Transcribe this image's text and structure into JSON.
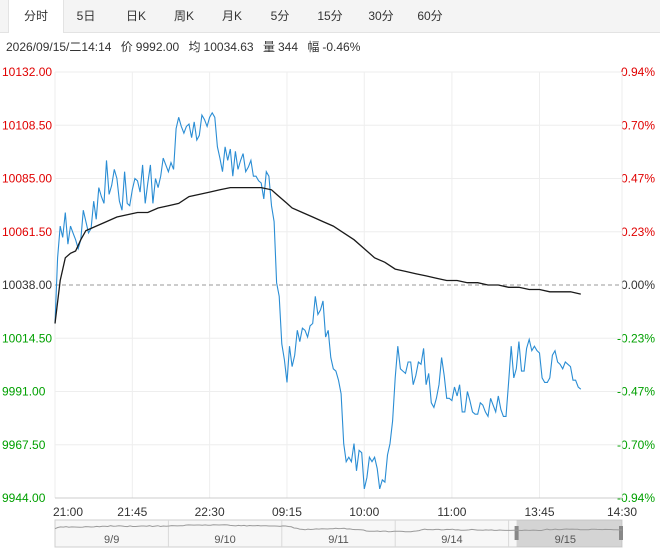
{
  "tabs": [
    {
      "label": "分时",
      "active": true
    },
    {
      "label": "5日",
      "active": false
    },
    {
      "label": "日K",
      "active": false
    },
    {
      "label": "周K",
      "active": false
    },
    {
      "label": "月K",
      "active": false
    },
    {
      "label": "5分",
      "active": false
    },
    {
      "label": "15分",
      "active": false
    },
    {
      "label": "30分",
      "active": false
    },
    {
      "label": "60分",
      "active": false
    }
  ],
  "info": {
    "datetime": "2026/09/15/二14:14",
    "price_label": "价",
    "price": "9992.00",
    "avg_label": "均",
    "avg": "10034.63",
    "volume_label": "量",
    "volume": "344",
    "change_label": "幅",
    "change": "-0.46%"
  },
  "colors": {
    "up": "#e00000",
    "down": "#00a000",
    "neutral": "#333333",
    "price_line": "#2a8dd4",
    "avg_line": "#1a1a1a"
  },
  "chart_data": {
    "type": "line",
    "y_ticks": [
      "10132.00",
      "10108.50",
      "10085.00",
      "10061.50",
      "10038.00",
      "10014.50",
      "9991.00",
      "9967.50",
      "9944.00"
    ],
    "pct_ticks": [
      "0.94%",
      "0.70%",
      "0.47%",
      "0.23%",
      "0.00%",
      "-0.23%",
      "-0.47%",
      "-0.70%",
      "-0.94%"
    ],
    "x_ticks": [
      "21:00",
      "21:45",
      "22:30",
      "09:15",
      "10:00",
      "11:00",
      "13:45",
      "14:30"
    ],
    "ylim": [
      9944.0,
      10132.0
    ],
    "base_price": 10038.0,
    "x_count": 220,
    "price_series": {
      "x": [
        0,
        1,
        2,
        3,
        4,
        5,
        6,
        7,
        8,
        9,
        10,
        11,
        12,
        13,
        14,
        15,
        16,
        17,
        18,
        19,
        20,
        21,
        22,
        23,
        24,
        25,
        26,
        27,
        28,
        29,
        30,
        31,
        32,
        33,
        34,
        35,
        36,
        37,
        38,
        39,
        40,
        41,
        42,
        43,
        44,
        45,
        46,
        47,
        48,
        49,
        50,
        51,
        52,
        53,
        54,
        55,
        56,
        57,
        58,
        59,
        60,
        61,
        62,
        63,
        64,
        65,
        66,
        67,
        68,
        69,
        70,
        71,
        72,
        73,
        74,
        75,
        76,
        77,
        78,
        79,
        80,
        81,
        82,
        83,
        84,
        85,
        86,
        87,
        88,
        89,
        90,
        91,
        92,
        93,
        94,
        95,
        96,
        97,
        98,
        99,
        100,
        101,
        102,
        103,
        104,
        105,
        106,
        107,
        108,
        109,
        110,
        111,
        112,
        113,
        114,
        115,
        116,
        117,
        118,
        119,
        120,
        121,
        122,
        123,
        124,
        125,
        126,
        127,
        128,
        129,
        130,
        131,
        132,
        133,
        134,
        135,
        136,
        137,
        138,
        139,
        140,
        141,
        142,
        143,
        144,
        145,
        146,
        147,
        148,
        149,
        150,
        151,
        152,
        153,
        154,
        155,
        156,
        157,
        158,
        159,
        160,
        161,
        162,
        163,
        164,
        165,
        166,
        167,
        168,
        169,
        170,
        171,
        172,
        173,
        174,
        175,
        176,
        177,
        178,
        179,
        180,
        181,
        182,
        183,
        184,
        185,
        186,
        187,
        188,
        189,
        190,
        191,
        192,
        193,
        194,
        195,
        196,
        197,
        198,
        199,
        200,
        201,
        202,
        203,
        204
      ],
      "values": [
        10021,
        10050,
        10064,
        10059,
        10070,
        10056,
        10064,
        10061,
        10058,
        10054,
        10058,
        10071,
        10066,
        10061,
        10063,
        10075,
        10067,
        10081,
        10077,
        10074,
        10093,
        10078,
        10082,
        10089,
        10085,
        10075,
        10071,
        10088,
        10074,
        10073,
        10080,
        10085,
        10084,
        10079,
        10091,
        10074,
        10083,
        10091,
        10074,
        10085,
        10081,
        10086,
        10094,
        10091,
        10088,
        10092,
        10089,
        10107,
        10112,
        10108,
        10105,
        10108,
        10109,
        10103,
        10110,
        10102,
        10104,
        10113,
        10111,
        10108,
        10112,
        10114,
        10112,
        10099,
        10094,
        10088,
        10099,
        10093,
        10098,
        10086,
        10097,
        10089,
        10093,
        10096,
        10088,
        10090,
        10093,
        10086,
        10086,
        10084,
        10083,
        10076,
        10088,
        10086,
        10073,
        10066,
        10039,
        10033,
        10012,
        10005,
        9995,
        10011,
        10002,
        10007,
        10018,
        10013,
        10019,
        10018,
        10015,
        10020,
        10021,
        10033,
        10025,
        10027,
        10031,
        10015,
        10018,
        10006,
        10001,
        10000,
        9996,
        9990,
        9968,
        9960,
        9962,
        9960,
        9968,
        9956,
        9965,
        9964,
        9948,
        9953,
        9962,
        9960,
        9962,
        9957,
        9948,
        9952,
        9951,
        9963,
        9968,
        9978,
        9997,
        10011,
        10001,
        10000,
        9999,
        10004,
        10004,
        9994,
        9998,
        10004,
        10003,
        10010,
        9994,
        9999,
        9986,
        9984,
        9988,
        9994,
        10006,
        9998,
        9988,
        9988,
        9987,
        9993,
        9989,
        9994,
        9982,
        9982,
        9991,
        9987,
        9982,
        9981,
        9981,
        9986,
        9985,
        9982,
        9980,
        9988,
        9985,
        9982,
        9989,
        9983,
        9980,
        9980,
        9995,
        10011,
        9997,
        10001,
        10013,
        10000,
        10000,
        10010,
        10014,
        10009,
        10011,
        10009,
        10008,
        9997,
        9995,
        9995,
        9997,
        10007,
        10009,
        10004,
        10003,
        10001,
        10004,
        10003,
        10002,
        9996,
        9996,
        9993,
        9992
      ]
    },
    "avg_series": {
      "x": [
        0,
        2,
        4,
        6,
        8,
        10,
        12,
        16,
        20,
        24,
        28,
        32,
        36,
        40,
        44,
        48,
        52,
        56,
        60,
        64,
        68,
        72,
        76,
        80,
        84,
        86,
        88,
        90,
        92,
        96,
        100,
        104,
        108,
        112,
        116,
        120,
        124,
        128,
        132,
        136,
        140,
        144,
        148,
        152,
        156,
        160,
        164,
        168,
        172,
        176,
        180,
        184,
        188,
        192,
        196,
        200,
        204
      ],
      "values": [
        10021,
        10040,
        10050,
        10052,
        10053,
        10058,
        10062,
        10064,
        10066,
        10068,
        10069,
        10070,
        10070,
        10072,
        10073,
        10074,
        10077,
        10078,
        10079,
        10080,
        10081,
        10081,
        10081,
        10081,
        10080,
        10078,
        10076,
        10074,
        10072,
        10070,
        10068,
        10066,
        10064,
        10061,
        10058,
        10054,
        10050,
        10048,
        10045,
        10044,
        10043,
        10042,
        10041,
        10040,
        10040,
        10039,
        10039,
        10038,
        10038,
        10037,
        10037,
        10036,
        10036,
        10035,
        10035,
        10035,
        10034
      ]
    },
    "navigator": {
      "labels": [
        "9/9",
        "9/10",
        "9/11",
        "9/14",
        "9/15"
      ],
      "selected": "9/15"
    }
  }
}
